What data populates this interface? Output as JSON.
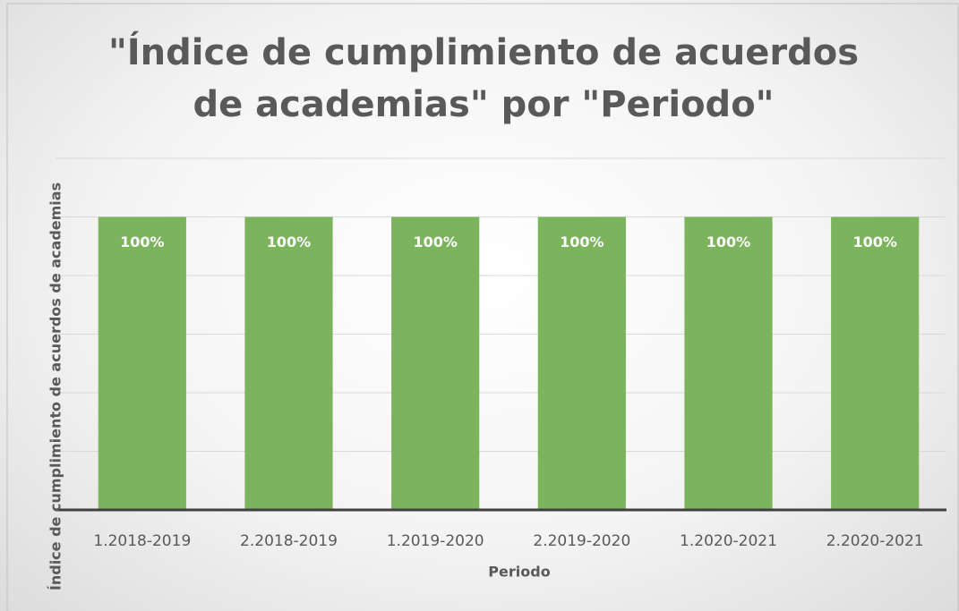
{
  "chart_data": {
    "type": "bar",
    "title": "\"Índice de cumplimiento de acuerdos de academias\" por \"Periodo\"",
    "x_label": "Periodo",
    "y_label": "Índice de cumplimiento de acuerdos de academias",
    "categories": [
      "1.2018-2019",
      "2.2018-2019",
      "1.2019-2020",
      "2.2019-2020",
      "1.2020-2021",
      "2.2020-2021"
    ],
    "values": [
      100,
      100,
      100,
      100,
      100,
      100
    ],
    "value_labels": [
      "100%",
      "100%",
      "100%",
      "100%",
      "100%",
      "100%"
    ],
    "color": "#7cb45e",
    "ylim": [
      0,
      120
    ],
    "yticks": [
      0,
      20,
      40,
      60,
      80,
      100,
      120
    ],
    "grid": true
  }
}
